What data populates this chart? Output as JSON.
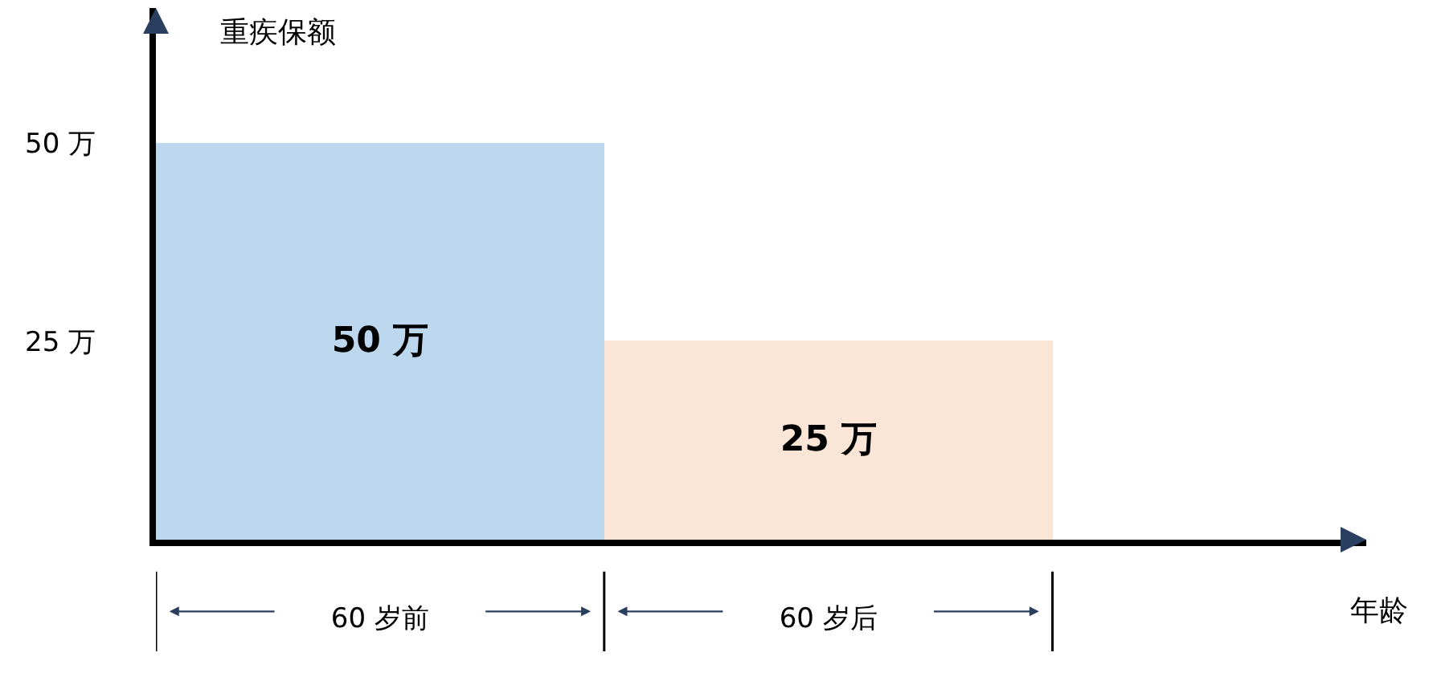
{
  "chart_data": {
    "type": "bar",
    "ylabel": "重疾保额",
    "xlabel": "年龄",
    "categories": [
      "60 岁前",
      "60 岁后"
    ],
    "values": [
      50,
      25
    ],
    "colors": [
      "#bdd7ee",
      "#fbe5d6"
    ],
    "value_labels": [
      "50 万",
      "25 万"
    ],
    "ylim": [
      0,
      67
    ],
    "yticks": [
      {
        "value": 25,
        "label": "25 万"
      },
      {
        "value": 50,
        "label": "50 万"
      }
    ]
  }
}
